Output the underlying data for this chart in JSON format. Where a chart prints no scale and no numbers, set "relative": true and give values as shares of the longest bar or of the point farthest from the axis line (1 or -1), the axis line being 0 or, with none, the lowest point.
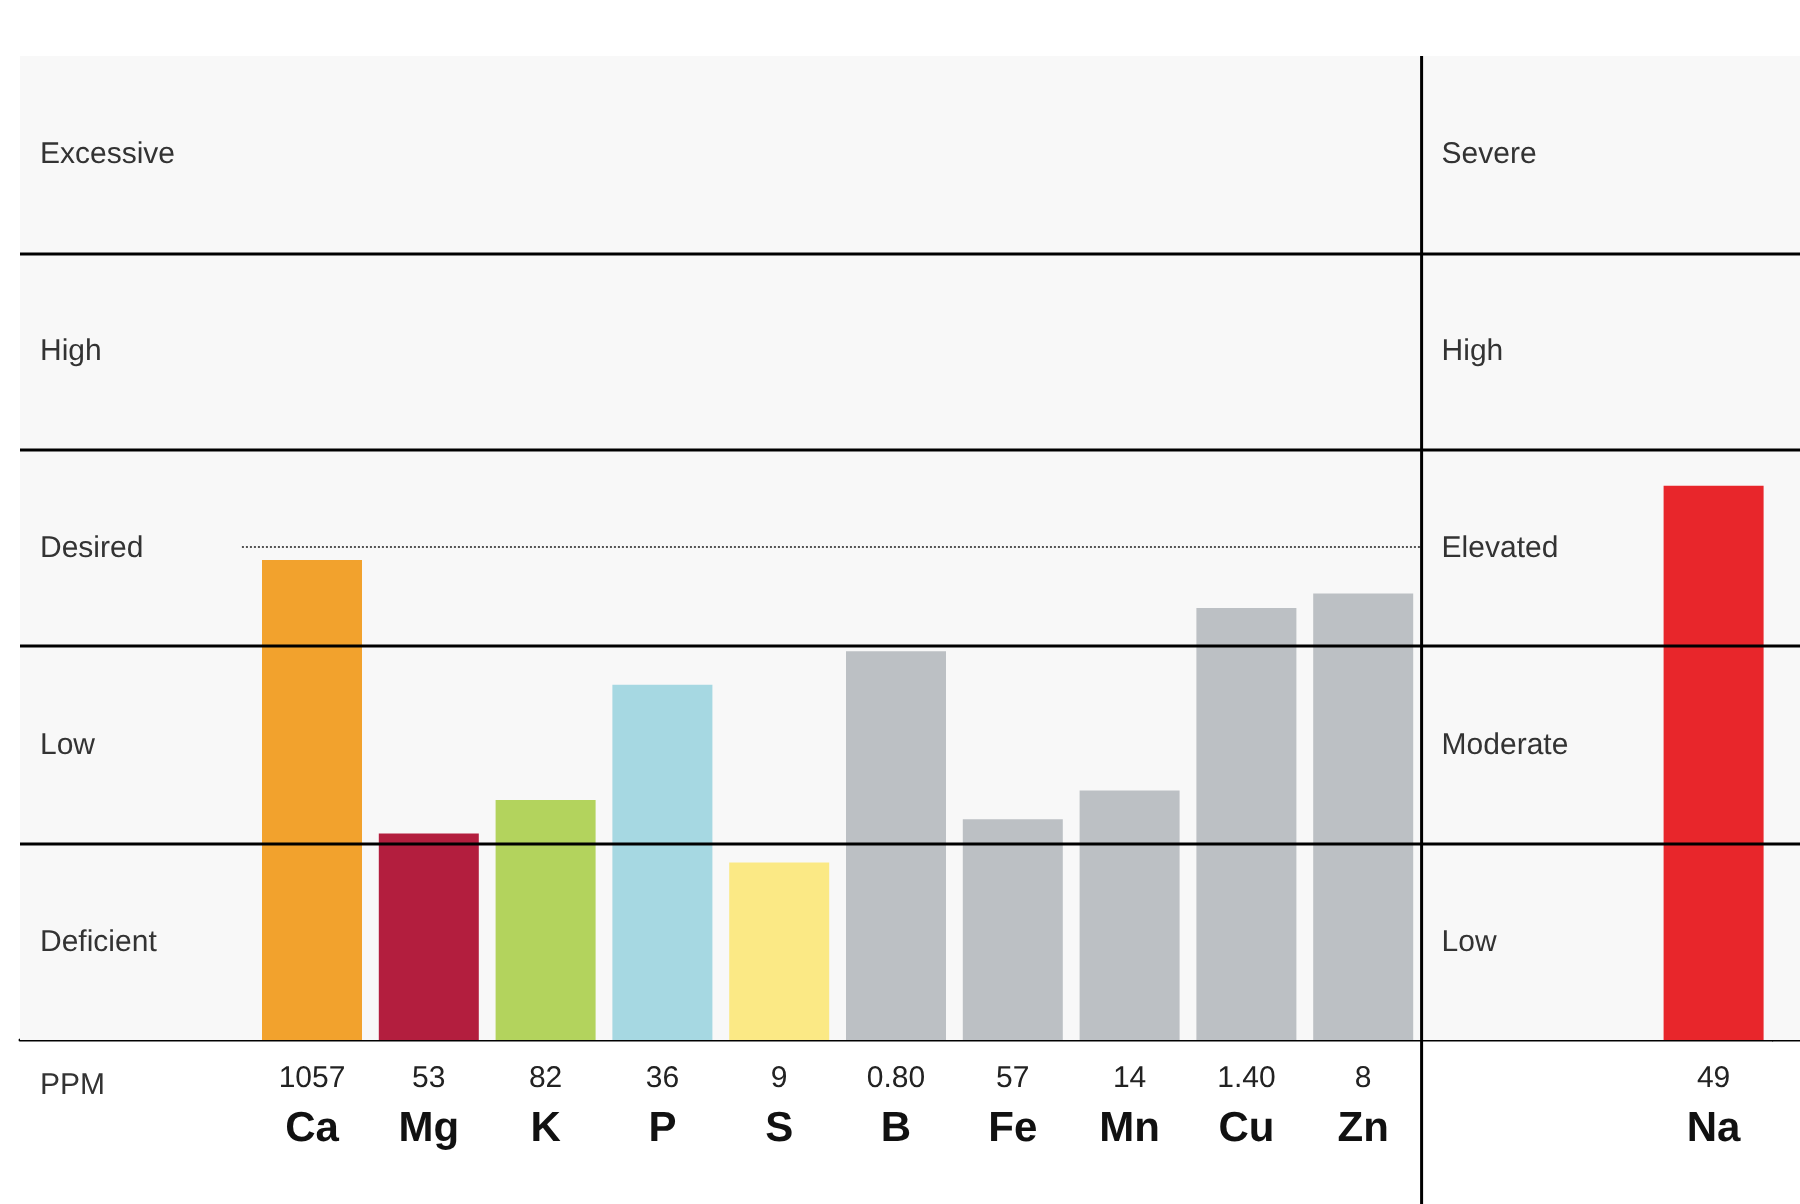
{
  "chart_data": {
    "type": "bar",
    "relative": true,
    "categories": [
      null,
      null,
      "1057\nCa",
      "53\nMg",
      "82\nK",
      "36\nP",
      "9\nS",
      "0.80\nB",
      "57\nFe",
      "14\nMn",
      "1.40\nCu",
      "8\nZn",
      null,
      null,
      "49\nNa"
    ],
    "series": [
      {
        "values": [
          null,
          null,
          1,
          0.43,
          0.5,
          0.74,
          0.37,
          0.81,
          0.46,
          0.52,
          0.9,
          0.93,
          null,
          null,
          null
        ],
        "colors": [
          null,
          null,
          "#f2a22d",
          "#b31e3e",
          "#b3d35d",
          "#a6d8e2",
          "#fbe985",
          "#bcc0c4",
          "#bcc0c4",
          "#bcc0c4",
          "#bcc0c4",
          "#bcc0c4",
          null,
          null,
          null
        ]
      },
      {
        "axis": "y2",
        "values": [
          null,
          null,
          null,
          null,
          null,
          null,
          null,
          null,
          null,
          null,
          null,
          null,
          null,
          null,
          1
        ],
        "color": "#e8262b"
      }
    ],
    "bands": [
      {
        "axis": "y",
        "from": 0,
        "to": 0.41,
        "label": "Deficient",
        "color": "#f8f8f8"
      },
      {
        "axis": "y",
        "from": 0.41,
        "to": 0.82,
        "label": "Low",
        "color": "#f8f8f8"
      },
      {
        "axis": "y",
        "from": 0.82,
        "to": 1.23,
        "label": "Desired",
        "color": "#f8f8f8"
      },
      {
        "axis": "y",
        "from": 1.23,
        "to": 1.64,
        "label": "High",
        "color": "#f8f8f8"
      },
      {
        "axis": "y",
        "from": 1.64,
        "to": 2.05,
        "label": "Excessive",
        "color": "#f8f8f8"
      },
      {
        "axis": "y2",
        "from": 0,
        "to": 0.355,
        "label": "Low",
        "color": "#f8f8f8"
      },
      {
        "axis": "y2",
        "from": 0.355,
        "to": 0.71,
        "label": "Moderate",
        "color": "#f8f8f8"
      },
      {
        "axis": "y2",
        "from": 0.71,
        "to": 1.065,
        "label": "Elevated",
        "color": "#f8f8f8"
      },
      {
        "axis": "y2",
        "from": 1.065,
        "to": 1.42,
        "label": "High",
        "color": "#f8f8f8"
      },
      {
        "axis": "y2",
        "from": 1.42,
        "to": 1.775,
        "label": "Severe",
        "color": "#f8f8f8"
      }
    ],
    "ref_lines": [
      {
        "axis": "y",
        "value": 1.03,
        "line_style": "dotted",
        "color": "#555555"
      },
      {
        "axis": "y",
        "value": 0.41,
        "line_style": "solid",
        "color": "#000000"
      },
      {
        "axis": "y",
        "value": 0.82,
        "line_style": "solid",
        "color": "#000000"
      },
      {
        "axis": "y",
        "value": 1.23,
        "line_style": "solid",
        "color": "#000000"
      },
      {
        "axis": "y",
        "value": 1.64,
        "line_style": "solid",
        "color": "#000000"
      }
    ],
    "annotations": [
      "PPM"
    ]
  }
}
